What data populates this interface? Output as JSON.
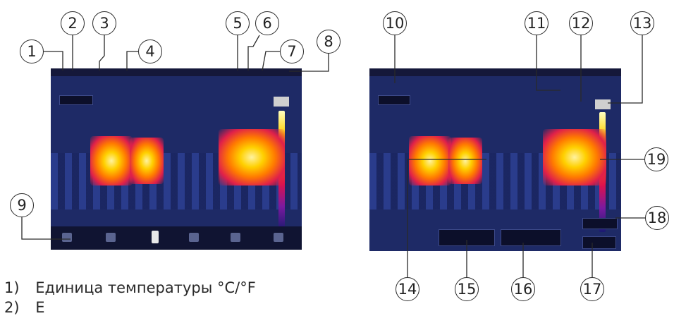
{
  "callouts": [
    "1",
    "2",
    "3",
    "4",
    "5",
    "6",
    "7",
    "8",
    "9",
    "10",
    "11",
    "12",
    "13",
    "14",
    "15",
    "16",
    "17",
    "18",
    "19"
  ],
  "caption": {
    "line1_num": "1)",
    "line1_text": "Единица температуры °C/°F",
    "line2_num": "2)",
    "line2_text": "Е"
  },
  "colors": {
    "screen_background": "#1e2a66",
    "hot_core": "#ffd000",
    "hot_edge": "#e0204a",
    "callout_stroke": "#2a2a2a"
  }
}
